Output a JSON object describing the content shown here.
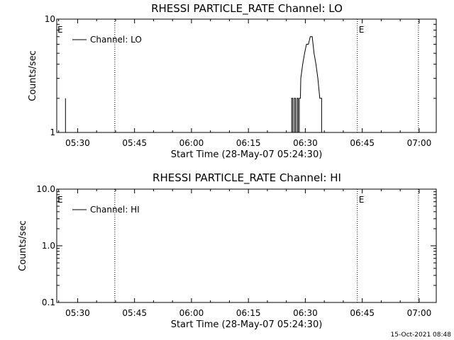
{
  "footer": {
    "timestamp": "15-Oct-2021 08:48"
  },
  "chart_data": [
    {
      "type": "line",
      "title": "RHESSI PARTICLE_RATE Channel: LO",
      "xlabel": "Start Time (28-May-07 05:24:30)",
      "ylabel": "Counts/sec",
      "x_unit": "minutes since 05:24:30",
      "xlim": [
        0,
        100
      ],
      "ylim": [
        1,
        10
      ],
      "yscale": "log",
      "x_ticks": [
        {
          "v": 5.5,
          "label": "05:30"
        },
        {
          "v": 20.5,
          "label": "05:45"
        },
        {
          "v": 35.5,
          "label": "06:00"
        },
        {
          "v": 50.5,
          "label": "06:15"
        },
        {
          "v": 65.5,
          "label": "06:30"
        },
        {
          "v": 80.5,
          "label": "06:45"
        },
        {
          "v": 95.5,
          "label": "07:00"
        }
      ],
      "y_ticks": [
        {
          "v": 1,
          "label": "1"
        },
        {
          "v": 10,
          "label": "10"
        }
      ],
      "legend": {
        "label": "Channel: LO",
        "position": "top-left"
      },
      "event_lines": [
        {
          "x": 15.3,
          "label": ""
        },
        {
          "x": 79.2,
          "label": "E"
        },
        {
          "x": 95.3,
          "label": ""
        }
      ],
      "start_marker": "E",
      "series": [
        {
          "name": "Channel: LO",
          "segments": [
            [
              [
                2.3,
                2
              ],
              [
                2.3,
                1
              ]
            ],
            [
              [
                61.9,
                1
              ],
              [
                61.9,
                2
              ],
              [
                62.2,
                2
              ],
              [
                62.2,
                1
              ],
              [
                62.6,
                1
              ],
              [
                62.6,
                2
              ],
              [
                62.9,
                2
              ],
              [
                62.9,
                1
              ],
              [
                63.3,
                1
              ],
              [
                63.3,
                2
              ],
              [
                63.6,
                2
              ],
              [
                63.6,
                1
              ],
              [
                63.9,
                1
              ],
              [
                63.9,
                2
              ],
              [
                64.2,
                2
              ],
              [
                64.3,
                3
              ],
              [
                64.8,
                4
              ],
              [
                65.3,
                5
              ],
              [
                65.8,
                6
              ],
              [
                66.3,
                6
              ],
              [
                66.8,
                7
              ],
              [
                67.3,
                7
              ],
              [
                67.8,
                5
              ],
              [
                68.3,
                4
              ],
              [
                68.8,
                3
              ],
              [
                69.3,
                2
              ],
              [
                69.8,
                2
              ],
              [
                69.8,
                1
              ]
            ]
          ]
        }
      ]
    },
    {
      "type": "line",
      "title": "RHESSI PARTICLE_RATE Channel: HI",
      "xlabel": "Start Time (28-May-07 05:24:30)",
      "ylabel": "Counts/sec",
      "x_unit": "minutes since 05:24:30",
      "xlim": [
        0,
        100
      ],
      "ylim": [
        0.1,
        10
      ],
      "yscale": "log",
      "x_ticks": [
        {
          "v": 5.5,
          "label": "05:30"
        },
        {
          "v": 20.5,
          "label": "05:45"
        },
        {
          "v": 35.5,
          "label": "06:00"
        },
        {
          "v": 50.5,
          "label": "06:15"
        },
        {
          "v": 65.5,
          "label": "06:30"
        },
        {
          "v": 80.5,
          "label": "06:45"
        },
        {
          "v": 95.5,
          "label": "07:00"
        }
      ],
      "y_ticks": [
        {
          "v": 0.1,
          "label": "0.1"
        },
        {
          "v": 1,
          "label": "1.0"
        },
        {
          "v": 10,
          "label": "10.0"
        }
      ],
      "legend": {
        "label": "Channel: HI",
        "position": "top-left"
      },
      "event_lines": [
        {
          "x": 15.3,
          "label": ""
        },
        {
          "x": 79.2,
          "label": "E"
        },
        {
          "x": 95.3,
          "label": ""
        }
      ],
      "start_marker": "E",
      "series": [
        {
          "name": "Channel: HI",
          "segments": []
        }
      ]
    }
  ]
}
